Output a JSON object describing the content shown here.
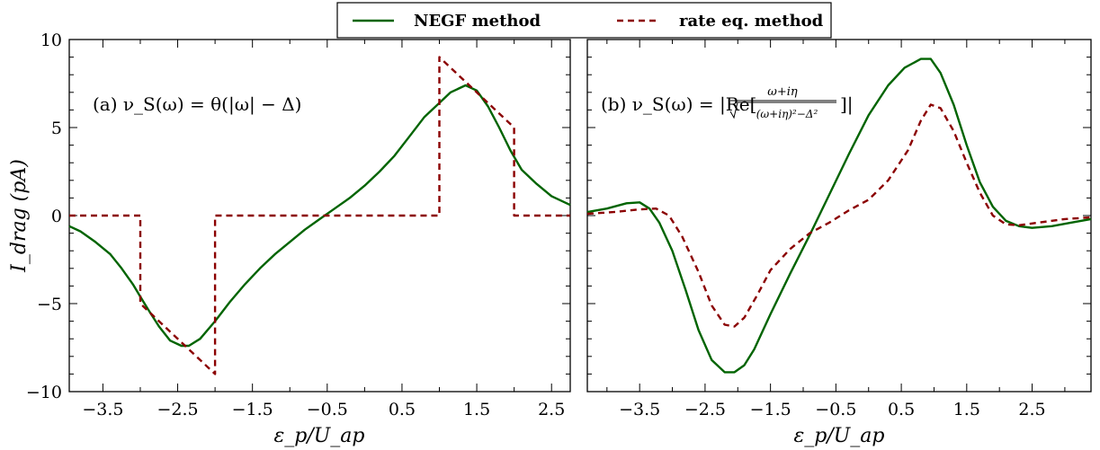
{
  "legend": {
    "items": [
      {
        "label": "NEGF method",
        "color": "#006400",
        "dash": "solid"
      },
      {
        "label": "rate eq. method",
        "color": "#8b0000",
        "dash": "dashed"
      }
    ]
  },
  "ylabel": "I_drag (pA)",
  "chart_data": [
    {
      "type": "line",
      "panel": "a",
      "annotation": "(a) ν_S(ω) = θ(|ω| − Δ)",
      "xlabel": "ε_p/U_ap",
      "ylabel": "I_drag (pA)",
      "xlim": [
        -3.95,
        2.75
      ],
      "ylim": [
        -10,
        10
      ],
      "xticks": [
        -3.5,
        -2.5,
        -1.5,
        -0.5,
        0.5,
        1.5,
        2.5
      ],
      "xtick_labels": [
        "−3.5",
        "−2.5",
        "−1.5",
        "−0.5",
        "0.5",
        "1.5",
        "2.5"
      ],
      "yticks": [
        -10,
        -5,
        0,
        5,
        10
      ],
      "ytick_labels": [
        "−10",
        "−5",
        "0",
        "5",
        "10"
      ],
      "grid": false,
      "series": [
        {
          "name": "NEGF method",
          "color": "#006400",
          "dash": "solid",
          "x": [
            -3.95,
            -3.8,
            -3.6,
            -3.4,
            -3.25,
            -3.1,
            -3.0,
            -2.9,
            -2.75,
            -2.6,
            -2.45,
            -2.35,
            -2.2,
            -2.0,
            -1.8,
            -1.6,
            -1.4,
            -1.2,
            -1.0,
            -0.8,
            -0.6,
            -0.4,
            -0.2,
            0.0,
            0.2,
            0.4,
            0.6,
            0.8,
            1.0,
            1.15,
            1.35,
            1.5,
            1.65,
            1.8,
            1.95,
            2.1,
            2.3,
            2.5,
            2.75
          ],
          "y": [
            -0.6,
            -0.9,
            -1.5,
            -2.2,
            -3.0,
            -3.9,
            -4.6,
            -5.3,
            -6.3,
            -7.1,
            -7.4,
            -7.4,
            -7.0,
            -6.0,
            -4.9,
            -3.9,
            -3.0,
            -2.2,
            -1.5,
            -0.8,
            -0.2,
            0.4,
            1.0,
            1.7,
            2.5,
            3.4,
            4.5,
            5.6,
            6.4,
            7.0,
            7.4,
            7.1,
            6.2,
            5.0,
            3.7,
            2.6,
            1.8,
            1.1,
            0.6
          ]
        },
        {
          "name": "rate eq. method",
          "color": "#8b0000",
          "dash": "dashed",
          "x": [
            -3.95,
            -3.0,
            -3.0,
            -2.0,
            -2.0,
            1.0,
            1.0,
            2.0,
            2.0,
            2.75
          ],
          "y": [
            0,
            0,
            -5.0,
            -9.0,
            0,
            0,
            9.0,
            5.0,
            0,
            0
          ]
        }
      ]
    },
    {
      "type": "line",
      "panel": "b",
      "annotation_prefix": "(b) ν_S(ω) = |Re[",
      "annotation_numerator": "ω+iη",
      "annotation_denominator": "(ω+iη)²−Δ²",
      "annotation_suffix": "]|",
      "xlabel": "ε_p/U_ap",
      "ylabel": "",
      "xlim": [
        -4.3,
        3.4
      ],
      "ylim": [
        -10,
        10
      ],
      "xticks": [
        -3.5,
        -2.5,
        -1.5,
        -0.5,
        0.5,
        1.5,
        2.5
      ],
      "xtick_labels": [
        "−3.5",
        "−2.5",
        "−1.5",
        "−0.5",
        "0.5",
        "1.5",
        "2.5"
      ],
      "yticks": [
        -10,
        -5,
        0,
        5,
        10
      ],
      "grid": false,
      "series": [
        {
          "name": "NEGF method",
          "color": "#006400",
          "dash": "solid",
          "x": [
            -4.3,
            -4.0,
            -3.7,
            -3.5,
            -3.35,
            -3.2,
            -3.0,
            -2.8,
            -2.6,
            -2.4,
            -2.2,
            -2.05,
            -1.9,
            -1.75,
            -1.5,
            -1.2,
            -0.9,
            -0.6,
            -0.3,
            0.0,
            0.3,
            0.55,
            0.8,
            0.95,
            1.1,
            1.3,
            1.5,
            1.7,
            1.9,
            2.1,
            2.3,
            2.5,
            2.8,
            3.1,
            3.4
          ],
          "y": [
            0.2,
            0.4,
            0.7,
            0.75,
            0.4,
            -0.4,
            -2.0,
            -4.2,
            -6.5,
            -8.2,
            -8.9,
            -8.9,
            -8.5,
            -7.6,
            -5.6,
            -3.3,
            -1.1,
            1.2,
            3.5,
            5.7,
            7.4,
            8.4,
            8.9,
            8.9,
            8.1,
            6.3,
            4.0,
            1.9,
            0.5,
            -0.3,
            -0.6,
            -0.7,
            -0.6,
            -0.4,
            -0.2
          ]
        },
        {
          "name": "rate eq. method",
          "color": "#8b0000",
          "dash": "dashed",
          "x": [
            -4.3,
            -3.9,
            -3.5,
            -3.25,
            -3.05,
            -2.85,
            -2.6,
            -2.4,
            -2.2,
            -2.05,
            -1.9,
            -1.7,
            -1.5,
            -1.2,
            -0.9,
            -0.6,
            -0.3,
            0.0,
            0.3,
            0.6,
            0.8,
            0.95,
            1.1,
            1.3,
            1.5,
            1.7,
            1.9,
            2.1,
            2.3,
            2.6,
            3.0,
            3.4
          ],
          "y": [
            0.1,
            0.2,
            0.35,
            0.4,
            0.0,
            -1.2,
            -3.2,
            -5.1,
            -6.2,
            -6.3,
            -5.8,
            -4.5,
            -3.1,
            -1.9,
            -1.0,
            -0.4,
            0.3,
            0.9,
            2.0,
            3.7,
            5.4,
            6.3,
            6.1,
            4.8,
            3.0,
            1.3,
            0.0,
            -0.5,
            -0.55,
            -0.4,
            -0.2,
            -0.1
          ]
        }
      ]
    }
  ]
}
